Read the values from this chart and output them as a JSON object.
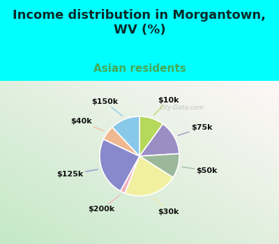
{
  "title": "Income distribution in Morgantown,\nWV (%)",
  "subtitle": "Asian residents",
  "title_color": "#0a2a2a",
  "subtitle_color": "#44aa55",
  "bg_cyan": "#00ffff",
  "labels": [
    "$10k",
    "$75k",
    "$50k",
    "$30k",
    "$200k",
    "$125k",
    "$40k",
    "$150k"
  ],
  "sizes": [
    10,
    14,
    10,
    22,
    2,
    24,
    6,
    12
  ],
  "colors": [
    "#b5d95b",
    "#9b8ec4",
    "#9bb89a",
    "#f0f0a0",
    "#f0b0c0",
    "#8888cc",
    "#f0b890",
    "#88c8e8"
  ],
  "startangle": 90,
  "counterclock": false,
  "watermark": "City-Data.com",
  "figsize": [
    4.0,
    3.5
  ],
  "dpi": 100,
  "title_fontsize": 13,
  "subtitle_fontsize": 11,
  "label_fontsize": 8
}
